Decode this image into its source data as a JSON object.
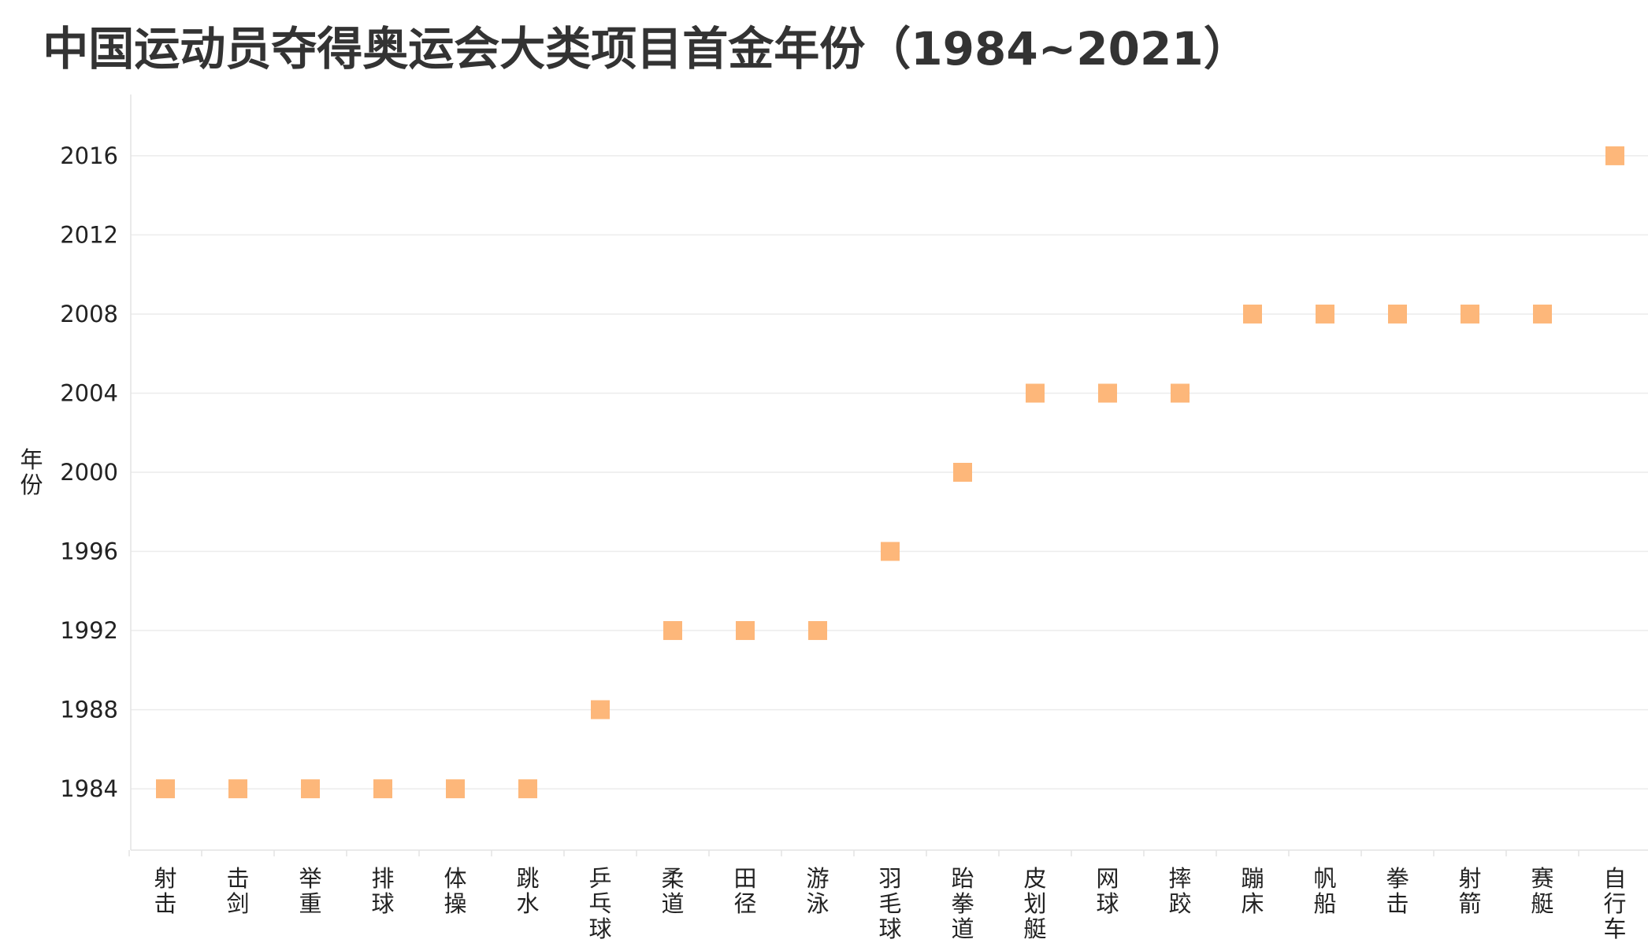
{
  "chart_data": {
    "type": "scatter",
    "title": "中国运动员夺得奥运会大类项目首金年份（1984~2021）",
    "xlabel": "",
    "ylabel": "年份",
    "categories": [
      "射击",
      "击剑",
      "举重",
      "排球",
      "体操",
      "跳水",
      "乒乓球",
      "柔道",
      "田径",
      "游泳",
      "羽毛球",
      "跆拳道",
      "皮划艇",
      "网球",
      "摔跤",
      "蹦床",
      "帆船",
      "拳击",
      "射箭",
      "赛艇",
      "自行车"
    ],
    "values": [
      1984,
      1984,
      1984,
      1984,
      1984,
      1984,
      1988,
      1992,
      1992,
      1992,
      1996,
      2000,
      2004,
      2004,
      2004,
      2008,
      2008,
      2008,
      2008,
      2008,
      2016
    ],
    "yticks": [
      1984,
      1988,
      1992,
      1996,
      2000,
      2004,
      2008,
      2012,
      2016
    ],
    "ylim": [
      1980.9,
      2019.1
    ],
    "marker": "square",
    "grid": true,
    "legend": "none",
    "color": "#fdb77a"
  }
}
